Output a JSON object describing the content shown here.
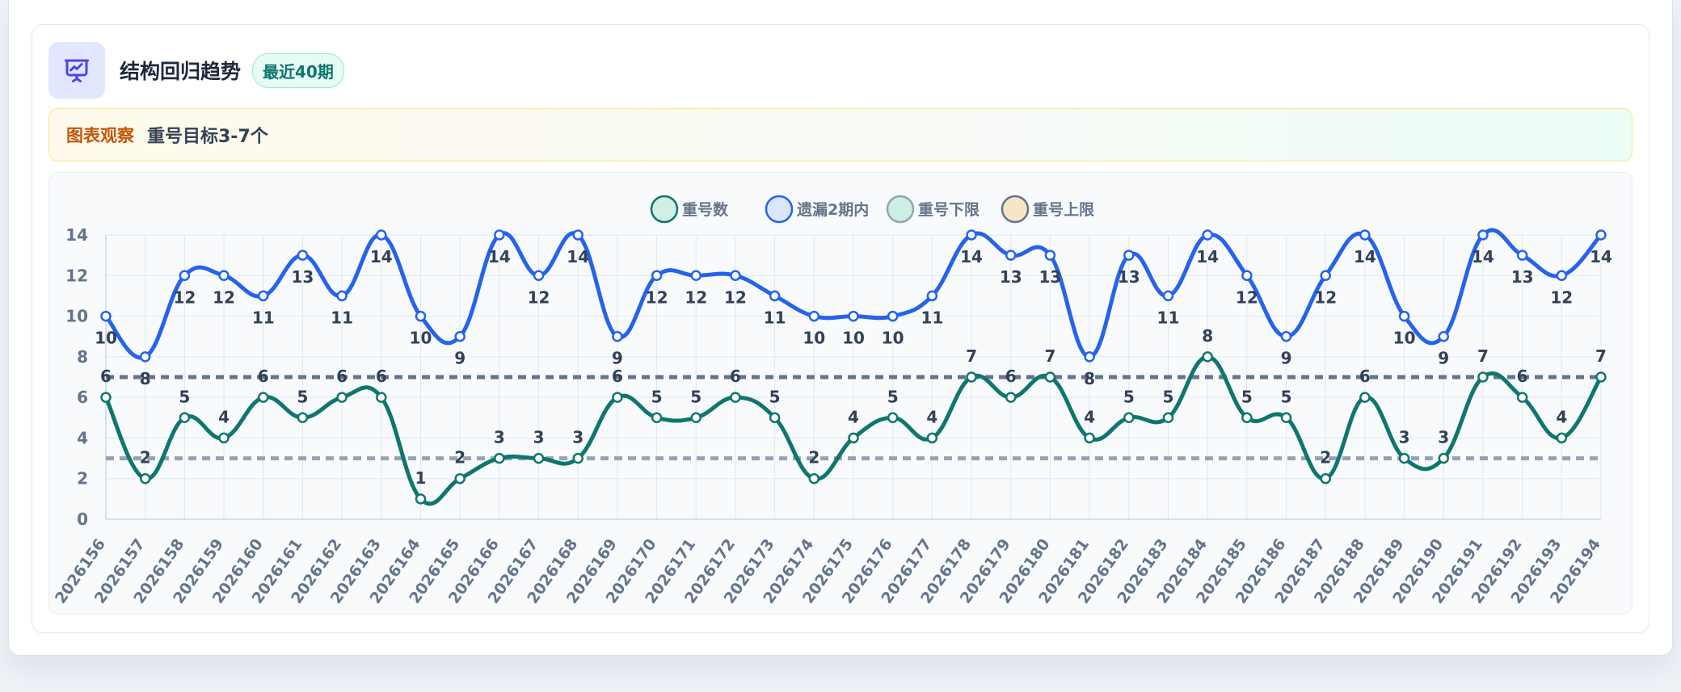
{
  "header": {
    "title": "结构回归趋势",
    "badge": "最近40期"
  },
  "observation": {
    "label": "图表观察",
    "text": "重号目标3-7个"
  },
  "icons": {
    "header_icon": "presentation-chart-icon"
  },
  "colors": {
    "repeat": "#0f766e",
    "missed": "#2563eb",
    "lower": "#94a3b8",
    "upper": "#64748b",
    "legend_lower_fill": "#cdeee4",
    "legend_upper_fill": "#f6e6c6",
    "axis_text": "#64748b",
    "grid": "#e2e8f0",
    "label_text": "#334155"
  },
  "chart_data": {
    "type": "line",
    "x": [
      "2026156",
      "2026157",
      "2026158",
      "2026159",
      "2026160",
      "2026161",
      "2026162",
      "2026163",
      "2026164",
      "2026165",
      "2026166",
      "2026167",
      "2026168",
      "2026169",
      "2026170",
      "2026171",
      "2026172",
      "2026173",
      "2026174",
      "2026175",
      "2026176",
      "2026177",
      "2026178",
      "2026179",
      "2026180",
      "2026181",
      "2026182",
      "2026183",
      "2026184",
      "2026185",
      "2026186",
      "2026187",
      "2026188",
      "2026189",
      "2026190",
      "2026191",
      "2026192",
      "2026193",
      "2026194"
    ],
    "ylim": [
      0,
      14
    ],
    "yticks": [
      0,
      2,
      4,
      6,
      8,
      10,
      12,
      14
    ],
    "grid": true,
    "legend_position": "top-center",
    "series": [
      {
        "name": "重号数",
        "values": [
          6,
          2,
          5,
          4,
          6,
          5,
          6,
          6,
          1,
          2,
          3,
          3,
          3,
          6,
          5,
          5,
          6,
          5,
          2,
          4,
          5,
          4,
          7,
          6,
          7,
          4,
          5,
          5,
          8,
          5,
          5,
          2,
          6,
          3,
          3,
          7,
          6,
          4,
          7
        ]
      },
      {
        "name": "遗漏2期内",
        "values": [
          10,
          8,
          12,
          12,
          11,
          13,
          11,
          14,
          10,
          9,
          14,
          12,
          14,
          9,
          12,
          12,
          12,
          11,
          10,
          10,
          10,
          11,
          14,
          13,
          13,
          8,
          13,
          11,
          14,
          12,
          9,
          12,
          14,
          10,
          9,
          14,
          13,
          12,
          14
        ]
      },
      {
        "name": "重号下限",
        "constant": 3
      },
      {
        "name": "重号上限",
        "constant": 7
      }
    ]
  }
}
